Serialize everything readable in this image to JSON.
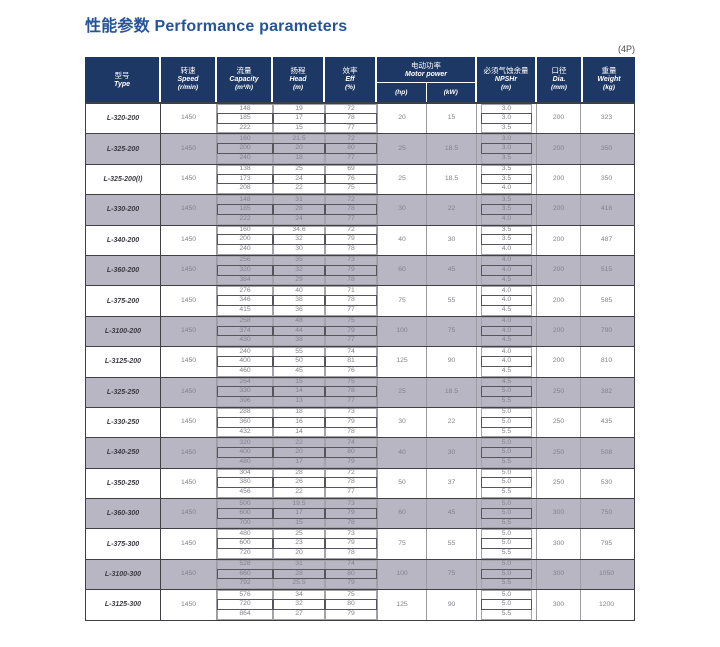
{
  "title": "性能参数 Performance parameters",
  "note": "(4P)",
  "colors": {
    "header_bg": "#1e3865",
    "row_shade": "#b8b6c3",
    "title_blue": "#26549b",
    "grid_dark": "#3f3f45",
    "grid_light": "#9b9ba1"
  },
  "header": {
    "type_zh": "型号",
    "type_en": "Type",
    "speed_zh": "转速",
    "speed_en": "Speed",
    "speed_unit": "(r/min)",
    "capacity_zh": "流量",
    "capacity_en": "Capacity",
    "capacity_unit": "(m³/h)",
    "head_zh": "扬程",
    "head_en": "Head",
    "head_unit": "(m)",
    "eff_zh": "效率",
    "eff_en": "Eff",
    "eff_unit": "(%)",
    "motor_zh": "电动功率",
    "motor_en": "Motor power",
    "motor_hp": "(hp)",
    "motor_kw": "(kW)",
    "npshr_zh": "必须气蚀余量",
    "npshr_en": "NPSHr",
    "npshr_unit": "(m)",
    "dia_zh": "口径",
    "dia_en": "Dia.",
    "dia_unit": "(mm)",
    "weight_zh": "重量",
    "weight_en": "Weight",
    "weight_unit": "(kg)"
  },
  "rows": [
    {
      "type": "L-320-200",
      "speed": "1450",
      "capacity": [
        "148",
        "185",
        "222"
      ],
      "head": [
        "19",
        "17",
        "15"
      ],
      "eff": [
        "72",
        "78",
        "77"
      ],
      "hp": "20",
      "kw": "15",
      "npshr": [
        "3.0",
        "3.0",
        "3.5"
      ],
      "dia": "200",
      "weight": "323",
      "shaded": false
    },
    {
      "type": "L-325-200",
      "speed": "1450",
      "capacity": [
        "160",
        "200",
        "240"
      ],
      "head": [
        "21.5",
        "20",
        "18"
      ],
      "eff": [
        "72",
        "80",
        "77"
      ],
      "hp": "25",
      "kw": "18.5",
      "npshr": [
        "3.0",
        "3.0",
        "3.5"
      ],
      "dia": "200",
      "weight": "350",
      "shaded": true
    },
    {
      "type": "L-325-200(I)",
      "speed": "1450",
      "capacity": [
        "138",
        "173",
        "208"
      ],
      "head": [
        "25",
        "24",
        "22"
      ],
      "eff": [
        "69",
        "76",
        "75"
      ],
      "hp": "25",
      "kw": "18.5",
      "npshr": [
        "3.5",
        "3.5",
        "4.0"
      ],
      "dia": "200",
      "weight": "350",
      "shaded": false
    },
    {
      "type": "L-330-200",
      "speed": "1450",
      "capacity": [
        "148",
        "185",
        "222"
      ],
      "head": [
        "31",
        "28",
        "24"
      ],
      "eff": [
        "72",
        "78",
        "77"
      ],
      "hp": "30",
      "kw": "22",
      "npshr": [
        "3.5",
        "3.5",
        "4.0"
      ],
      "dia": "200",
      "weight": "418",
      "shaded": true
    },
    {
      "type": "L-340-200",
      "speed": "1450",
      "capacity": [
        "160",
        "200",
        "240"
      ],
      "head": [
        "34.6",
        "32",
        "30"
      ],
      "eff": [
        "72",
        "79",
        "78"
      ],
      "hp": "40",
      "kw": "30",
      "npshr": [
        "3.5",
        "3.5",
        "4.0"
      ],
      "dia": "200",
      "weight": "487",
      "shaded": false
    },
    {
      "type": "L-360-200",
      "speed": "1450",
      "capacity": [
        "256",
        "320",
        "384"
      ],
      "head": [
        "35",
        "32",
        "29"
      ],
      "eff": [
        "73",
        "79",
        "78"
      ],
      "hp": "60",
      "kw": "45",
      "npshr": [
        "4.0",
        "4.0",
        "4.5"
      ],
      "dia": "200",
      "weight": "515",
      "shaded": true
    },
    {
      "type": "L-375-200",
      "speed": "1450",
      "capacity": [
        "276",
        "346",
        "415"
      ],
      "head": [
        "40",
        "38",
        "36"
      ],
      "eff": [
        "71",
        "78",
        "77"
      ],
      "hp": "75",
      "kw": "55",
      "npshr": [
        "4.0",
        "4.0",
        "4.5"
      ],
      "dia": "200",
      "weight": "585",
      "shaded": false
    },
    {
      "type": "L-3100-200",
      "speed": "1450",
      "capacity": [
        "258",
        "374",
        "430"
      ],
      "head": [
        "48",
        "44",
        "38"
      ],
      "eff": [
        "75",
        "79",
        "77"
      ],
      "hp": "100",
      "kw": "75",
      "npshr": [
        "4.0",
        "4.0",
        "4.5"
      ],
      "dia": "200",
      "weight": "790",
      "shaded": true
    },
    {
      "type": "L-3125-200",
      "speed": "1450",
      "capacity": [
        "240",
        "400",
        "460"
      ],
      "head": [
        "55",
        "50",
        "45"
      ],
      "eff": [
        "74",
        "81",
        "76"
      ],
      "hp": "125",
      "kw": "90",
      "npshr": [
        "4.0",
        "4.0",
        "4.5"
      ],
      "dia": "200",
      "weight": "810",
      "shaded": false
    },
    {
      "type": "L-325-250",
      "speed": "1450",
      "capacity": [
        "264",
        "330",
        "396"
      ],
      "head": [
        "15",
        "14",
        "13"
      ],
      "eff": [
        "75",
        "78",
        "77"
      ],
      "hp": "25",
      "kw": "18.5",
      "npshr": [
        "4.5",
        "5.0",
        "5.5"
      ],
      "dia": "250",
      "weight": "382",
      "shaded": true
    },
    {
      "type": "L-330-250",
      "speed": "1450",
      "capacity": [
        "288",
        "360",
        "432"
      ],
      "head": [
        "18",
        "16",
        "14"
      ],
      "eff": [
        "73",
        "79",
        "78"
      ],
      "hp": "30",
      "kw": "22",
      "npshr": [
        "5.0",
        "5.0",
        "5.5"
      ],
      "dia": "250",
      "weight": "435",
      "shaded": false
    },
    {
      "type": "L-340-250",
      "speed": "1450",
      "capacity": [
        "320",
        "400",
        "480"
      ],
      "head": [
        "22",
        "20",
        "17"
      ],
      "eff": [
        "74",
        "80",
        "79"
      ],
      "hp": "40",
      "kw": "30",
      "npshr": [
        "5.0",
        "5.0",
        "5.5"
      ],
      "dia": "250",
      "weight": "508",
      "shaded": true
    },
    {
      "type": "L-350-250",
      "speed": "1450",
      "capacity": [
        "304",
        "380",
        "456"
      ],
      "head": [
        "28",
        "26",
        "22"
      ],
      "eff": [
        "72",
        "78",
        "77"
      ],
      "hp": "50",
      "kw": "37",
      "npshr": [
        "5.0",
        "5.0",
        "5.5"
      ],
      "dia": "250",
      "weight": "530",
      "shaded": false
    },
    {
      "type": "L-360-300",
      "speed": "1450",
      "capacity": [
        "500",
        "600",
        "700"
      ],
      "head": [
        "19.5",
        "17",
        "15"
      ],
      "eff": [
        "73",
        "79",
        "78"
      ],
      "hp": "60",
      "kw": "45",
      "npshr": [
        "5.0",
        "5.0",
        "5.5"
      ],
      "dia": "300",
      "weight": "750",
      "shaded": true
    },
    {
      "type": "L-375-300",
      "speed": "1450",
      "capacity": [
        "480",
        "600",
        "720"
      ],
      "head": [
        "25",
        "23",
        "20"
      ],
      "eff": [
        "73",
        "79",
        "78"
      ],
      "hp": "75",
      "kw": "55",
      "npshr": [
        "5.0",
        "5.0",
        "5.5"
      ],
      "dia": "300",
      "weight": "795",
      "shaded": false
    },
    {
      "type": "L-3100-300",
      "speed": "1450",
      "capacity": [
        "528",
        "660",
        "792"
      ],
      "head": [
        "31",
        "28",
        "25.5"
      ],
      "eff": [
        "74",
        "80",
        "79"
      ],
      "hp": "100",
      "kw": "75",
      "npshr": [
        "5.0",
        "5.0",
        "5.5"
      ],
      "dia": "300",
      "weight": "1050",
      "shaded": true
    },
    {
      "type": "L-3125-300",
      "speed": "1450",
      "capacity": [
        "576",
        "720",
        "864"
      ],
      "head": [
        "34",
        "32",
        "27"
      ],
      "eff": [
        "75",
        "80",
        "79"
      ],
      "hp": "125",
      "kw": "90",
      "npshr": [
        "5.0",
        "5.0",
        "5.5"
      ],
      "dia": "300",
      "weight": "1200",
      "shaded": false
    }
  ]
}
